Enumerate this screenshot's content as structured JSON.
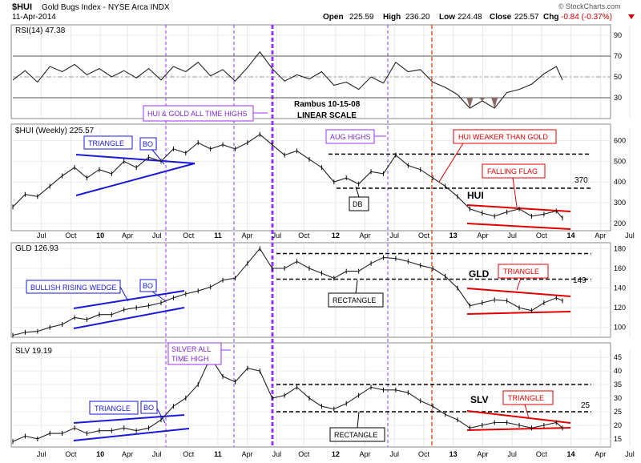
{
  "header": {
    "symbol": "$HUI",
    "name": "Gold Bugs Index - NYSE Arca INDX",
    "date": "11-Apr-2014",
    "open_label": "Open",
    "open": "225.59",
    "high_label": "High",
    "high": "236.20",
    "low_label": "Low",
    "low": "224.48",
    "close_label": "Close",
    "close": "225.57",
    "chg_label": "Chg",
    "chg": "-0.84 (-0.37%)",
    "chg_icon": "down-triangle-icon",
    "watermark": "© StockCharts.com",
    "colors": {
      "down": "#cc0000"
    }
  },
  "annotations": {
    "rambus": "Rambus 10-15-08",
    "scale": "LINEAR SCALE",
    "hui_gold_ath": "HUI & GOLD ALL TIME HIGHS",
    "silver_ath_1": "SILVER ALL",
    "silver_ath_2": "TIME HIGH",
    "aug_highs": "AUG HIGHS",
    "hui_weaker": "HUI WEAKER THAN GOLD",
    "falling_flag": "FALLING FLAG",
    "triangle": "TRIANGLE",
    "bo": "BO",
    "db": "DB",
    "rectangle": "RECTANGLE",
    "bullish_wedge": "BULLISH RISING WEDGE",
    "hui_name": "HUI",
    "gld_name": "GLD",
    "slv_name": "SLV",
    "hui_level": "370",
    "gld_level": "149",
    "slv_level": "25",
    "colors": {
      "blue": "#1a1ad6",
      "red": "#e00000",
      "purple": "#9b30ff",
      "purple_text": "#7a2ad0",
      "orange": "#e0581a",
      "rsi_fill": "#8b6a6a"
    }
  },
  "chart_data": [
    {
      "type": "line",
      "title": "RSI(14) 47.38",
      "y_ticks": [
        "30",
        "50",
        "70",
        "90"
      ],
      "ylim": [
        10,
        100
      ],
      "reference_levels": [
        30,
        50,
        70
      ],
      "x": [
        0,
        4,
        8,
        12,
        16,
        20,
        24,
        28,
        32,
        36,
        40,
        44,
        48,
        52,
        56,
        60,
        64,
        68,
        72,
        76,
        80,
        84,
        88,
        92,
        96,
        100,
        104,
        108,
        112,
        116,
        120,
        124,
        128,
        132,
        136,
        140,
        144,
        148,
        152,
        156,
        160,
        164,
        168,
        172,
        176,
        178
      ],
      "values": [
        47,
        56,
        45,
        60,
        55,
        62,
        52,
        58,
        50,
        56,
        49,
        58,
        47,
        60,
        55,
        64,
        51,
        57,
        46,
        59,
        74,
        58,
        46,
        52,
        48,
        55,
        42,
        45,
        38,
        50,
        44,
        64,
        55,
        57,
        45,
        40,
        33,
        20,
        27,
        20,
        35,
        38,
        43,
        53,
        60,
        47
      ]
    },
    {
      "type": "line",
      "title": "$HUI (Weekly) 225.57",
      "y_ticks": [
        "200",
        "300",
        "400",
        "500",
        "600"
      ],
      "ylim": [
        165,
        660
      ],
      "reference_levels": [
        535,
        370
      ],
      "x": [
        0,
        4,
        8,
        12,
        16,
        20,
        24,
        28,
        32,
        36,
        40,
        44,
        48,
        52,
        56,
        60,
        64,
        68,
        72,
        76,
        80,
        84,
        88,
        92,
        96,
        100,
        104,
        108,
        112,
        116,
        120,
        124,
        128,
        132,
        136,
        140,
        144,
        148,
        152,
        156,
        160,
        164,
        168,
        172,
        176,
        178
      ],
      "values": [
        280,
        340,
        330,
        380,
        430,
        470,
        420,
        460,
        440,
        500,
        470,
        520,
        500,
        560,
        540,
        590,
        560,
        580,
        560,
        590,
        630,
        580,
        530,
        550,
        510,
        470,
        400,
        420,
        390,
        450,
        440,
        530,
        480,
        460,
        420,
        380,
        330,
        270,
        250,
        235,
        255,
        270,
        235,
        245,
        260,
        226
      ]
    },
    {
      "type": "line",
      "title": "GLD 126.93",
      "y_ticks": [
        "100",
        "120",
        "140",
        "160",
        "180"
      ],
      "ylim": [
        90,
        186
      ],
      "reference_levels": [
        175,
        149
      ],
      "x": [
        0,
        4,
        8,
        12,
        16,
        20,
        24,
        28,
        32,
        36,
        40,
        44,
        48,
        52,
        56,
        60,
        64,
        68,
        72,
        76,
        80,
        84,
        88,
        92,
        96,
        100,
        104,
        108,
        112,
        116,
        120,
        124,
        128,
        132,
        136,
        140,
        144,
        148,
        152,
        156,
        160,
        164,
        168,
        172,
        176,
        178
      ],
      "values": [
        92,
        95,
        96,
        100,
        103,
        110,
        108,
        113,
        113,
        118,
        120,
        122,
        125,
        130,
        134,
        137,
        141,
        148,
        150,
        165,
        180,
        160,
        160,
        167,
        160,
        155,
        150,
        157,
        157,
        165,
        171,
        170,
        167,
        163,
        160,
        152,
        140,
        122,
        125,
        128,
        127,
        120,
        117,
        125,
        130,
        127
      ]
    },
    {
      "type": "line",
      "title": "SLV 19.19",
      "y_ticks": [
        "15",
        "20",
        "25",
        "30",
        "35",
        "40",
        "45"
      ],
      "ylim": [
        12,
        48
      ],
      "reference_levels": [
        35,
        25
      ],
      "x": [
        0,
        4,
        8,
        12,
        16,
        20,
        24,
        28,
        32,
        36,
        40,
        44,
        48,
        52,
        56,
        60,
        64,
        68,
        72,
        76,
        80,
        84,
        88,
        92,
        96,
        100,
        104,
        108,
        112,
        116,
        120,
        124,
        128,
        132,
        136,
        140,
        144,
        148,
        152,
        156,
        160,
        164,
        168,
        172,
        176,
        178
      ],
      "values": [
        14,
        16,
        15,
        17,
        17,
        19,
        17,
        18,
        18,
        19,
        18,
        19,
        22,
        27,
        30,
        35,
        45,
        38,
        36,
        41,
        40,
        30,
        31,
        34,
        30,
        27,
        26,
        28,
        31,
        34,
        33,
        33,
        32,
        29,
        27,
        24,
        22,
        19,
        20,
        21,
        21,
        20,
        19,
        20,
        21,
        19
      ]
    }
  ],
  "x_axis": {
    "labels": [
      {
        "t": "Jul",
        "x": 2,
        "bold": false
      },
      {
        "t": "Oct",
        "x": 15,
        "bold": false
      },
      {
        "t": "10",
        "x": 28,
        "bold": true
      },
      {
        "t": "Apr",
        "x": 40,
        "bold": false
      },
      {
        "t": "Jul",
        "x": 53,
        "bold": false
      },
      {
        "t": "Oct",
        "x": 67,
        "bold": false
      },
      {
        "t": "11",
        "x": 80,
        "bold": true
      },
      {
        "t": "Apr",
        "x": 93,
        "bold": false
      },
      {
        "t": "Jul",
        "x": 106,
        "bold": false
      },
      {
        "t": "Oct",
        "x": 118,
        "bold": false
      },
      {
        "t": "12",
        "x": 132,
        "bold": true
      },
      {
        "t": "Apr",
        "x": 145,
        "bold": false
      },
      {
        "t": "Jul",
        "x": 158,
        "bold": false
      },
      {
        "t": "Oct",
        "x": 171,
        "bold": false
      },
      {
        "t": "13",
        "x": 184,
        "bold": true
      },
      {
        "t": "Apr",
        "x": 197,
        "bold": false
      },
      {
        "t": "Jul",
        "x": 210,
        "bold": false
      },
      {
        "t": "Oct",
        "x": 223,
        "bold": false
      },
      {
        "t": "14",
        "x": 236,
        "bold": true
      },
      {
        "t": "Apr",
        "x": 249,
        "bold": false
      },
      {
        "t": "Jul",
        "x": 262,
        "bold": false
      }
    ]
  }
}
